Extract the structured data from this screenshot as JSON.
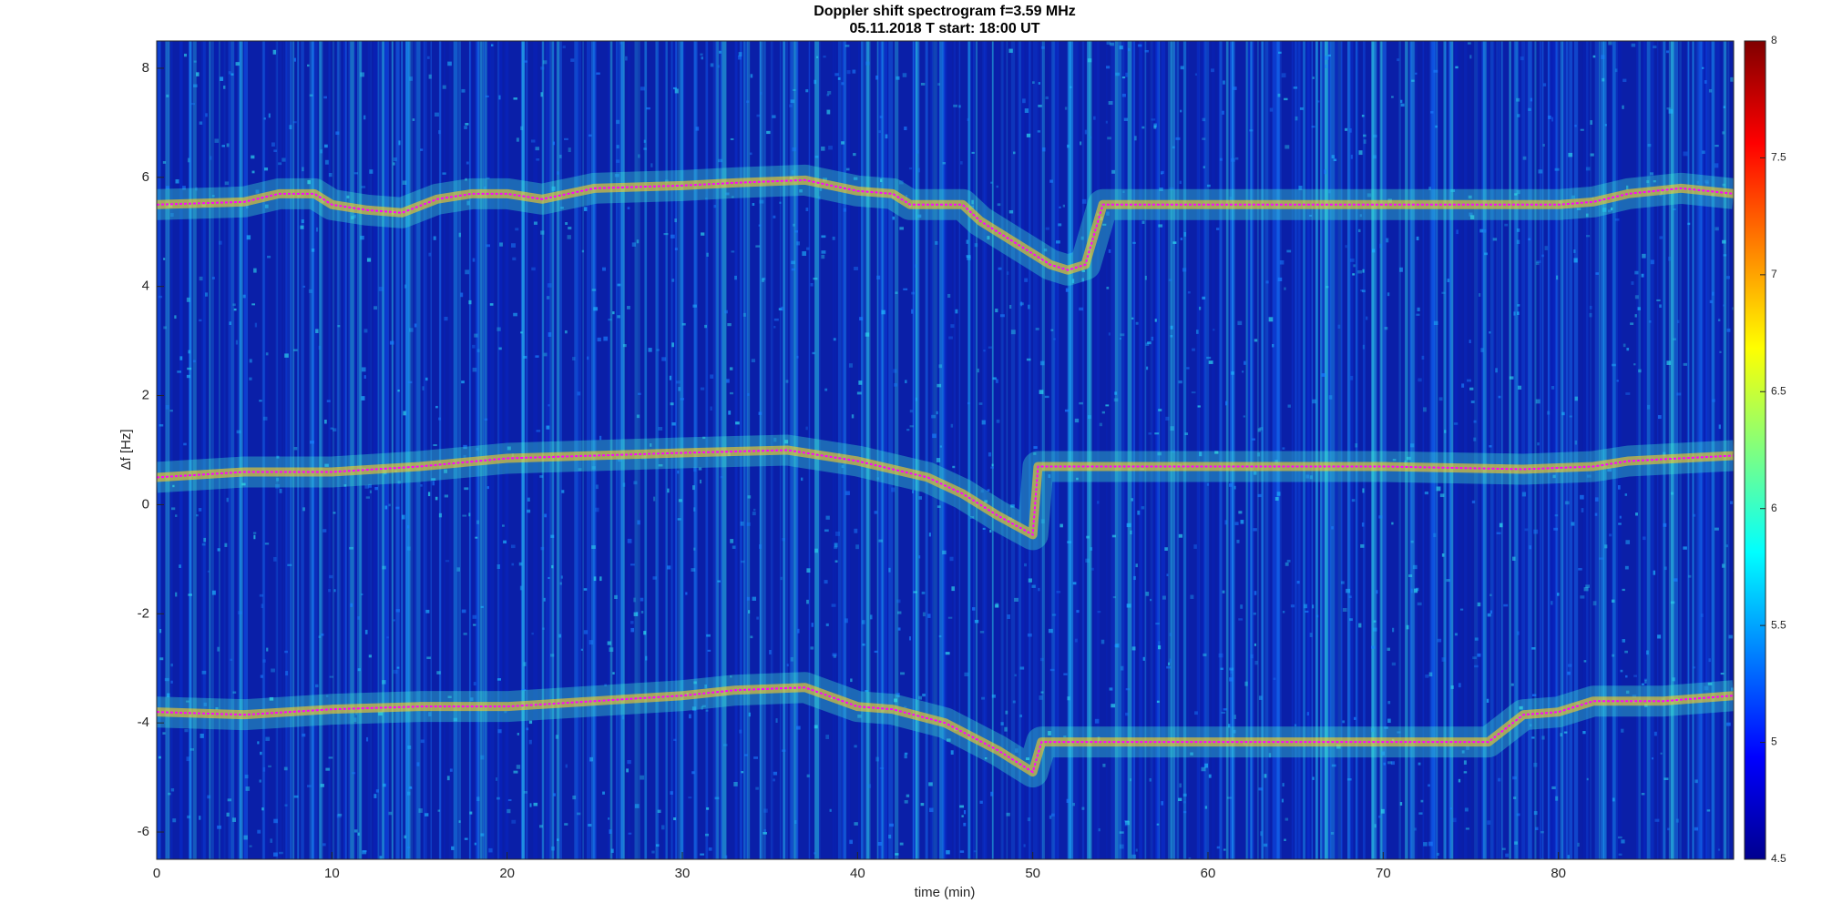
{
  "chart_data": {
    "type": "spectrogram",
    "title": "Doppler shift spectrogram f=3.59 MHz",
    "subtitle": "05.11.2018   T start: 18:00 UT",
    "x_label": "time (min)",
    "y_label": "Δf [Hz]",
    "xlim": [
      0,
      90
    ],
    "xticks": [
      0,
      10,
      20,
      30,
      40,
      50,
      60,
      70,
      80
    ],
    "ylim": [
      -6.5,
      8.5
    ],
    "yticks": [
      -6,
      -4,
      -2,
      0,
      2,
      4,
      6,
      8
    ],
    "clim": [
      4.5,
      8
    ],
    "cticks": [
      4.5,
      5,
      5.5,
      6,
      6.5,
      7,
      7.5,
      8
    ],
    "series": [
      {
        "color": "#ff00ff",
        "x": [
          0,
          5,
          7,
          9,
          10,
          12,
          14,
          16,
          18,
          20,
          22,
          25,
          30,
          33,
          37,
          40,
          42,
          43,
          46,
          47,
          49,
          51,
          52,
          53,
          54,
          60,
          70,
          77,
          80,
          82,
          84,
          87,
          90
        ],
        "values": [
          5.5,
          5.55,
          5.7,
          5.7,
          5.5,
          5.4,
          5.35,
          5.6,
          5.7,
          5.7,
          5.6,
          5.8,
          5.85,
          5.9,
          5.95,
          5.75,
          5.7,
          5.5,
          5.5,
          5.2,
          4.8,
          4.4,
          4.3,
          4.4,
          5.5,
          5.5,
          5.5,
          5.5,
          5.5,
          5.55,
          5.7,
          5.8,
          5.7
        ]
      },
      {
        "color": "#ff00ff",
        "x": [
          0,
          5,
          10,
          15,
          20,
          25,
          30,
          36,
          40,
          42,
          44,
          46,
          48,
          50,
          50.3,
          55,
          60,
          70,
          78,
          82,
          84,
          90
        ],
        "values": [
          0.5,
          0.6,
          0.6,
          0.7,
          0.85,
          0.9,
          0.95,
          1.0,
          0.8,
          0.65,
          0.5,
          0.2,
          -0.2,
          -0.55,
          0.7,
          0.7,
          0.7,
          0.7,
          0.65,
          0.7,
          0.8,
          0.9
        ]
      },
      {
        "color": "#ff00ff",
        "x": [
          0,
          5,
          10,
          15,
          20,
          25,
          30,
          33,
          37,
          40,
          42,
          45,
          48,
          50,
          50.5,
          55,
          60,
          70,
          76,
          78,
          80,
          82,
          86,
          90
        ],
        "values": [
          -3.8,
          -3.85,
          -3.75,
          -3.7,
          -3.7,
          -3.6,
          -3.5,
          -3.4,
          -3.35,
          -3.7,
          -3.75,
          -4.0,
          -4.5,
          -4.9,
          -4.35,
          -4.35,
          -4.35,
          -4.35,
          -4.35,
          -3.85,
          -3.8,
          -3.6,
          -3.6,
          -3.5
        ]
      }
    ]
  }
}
